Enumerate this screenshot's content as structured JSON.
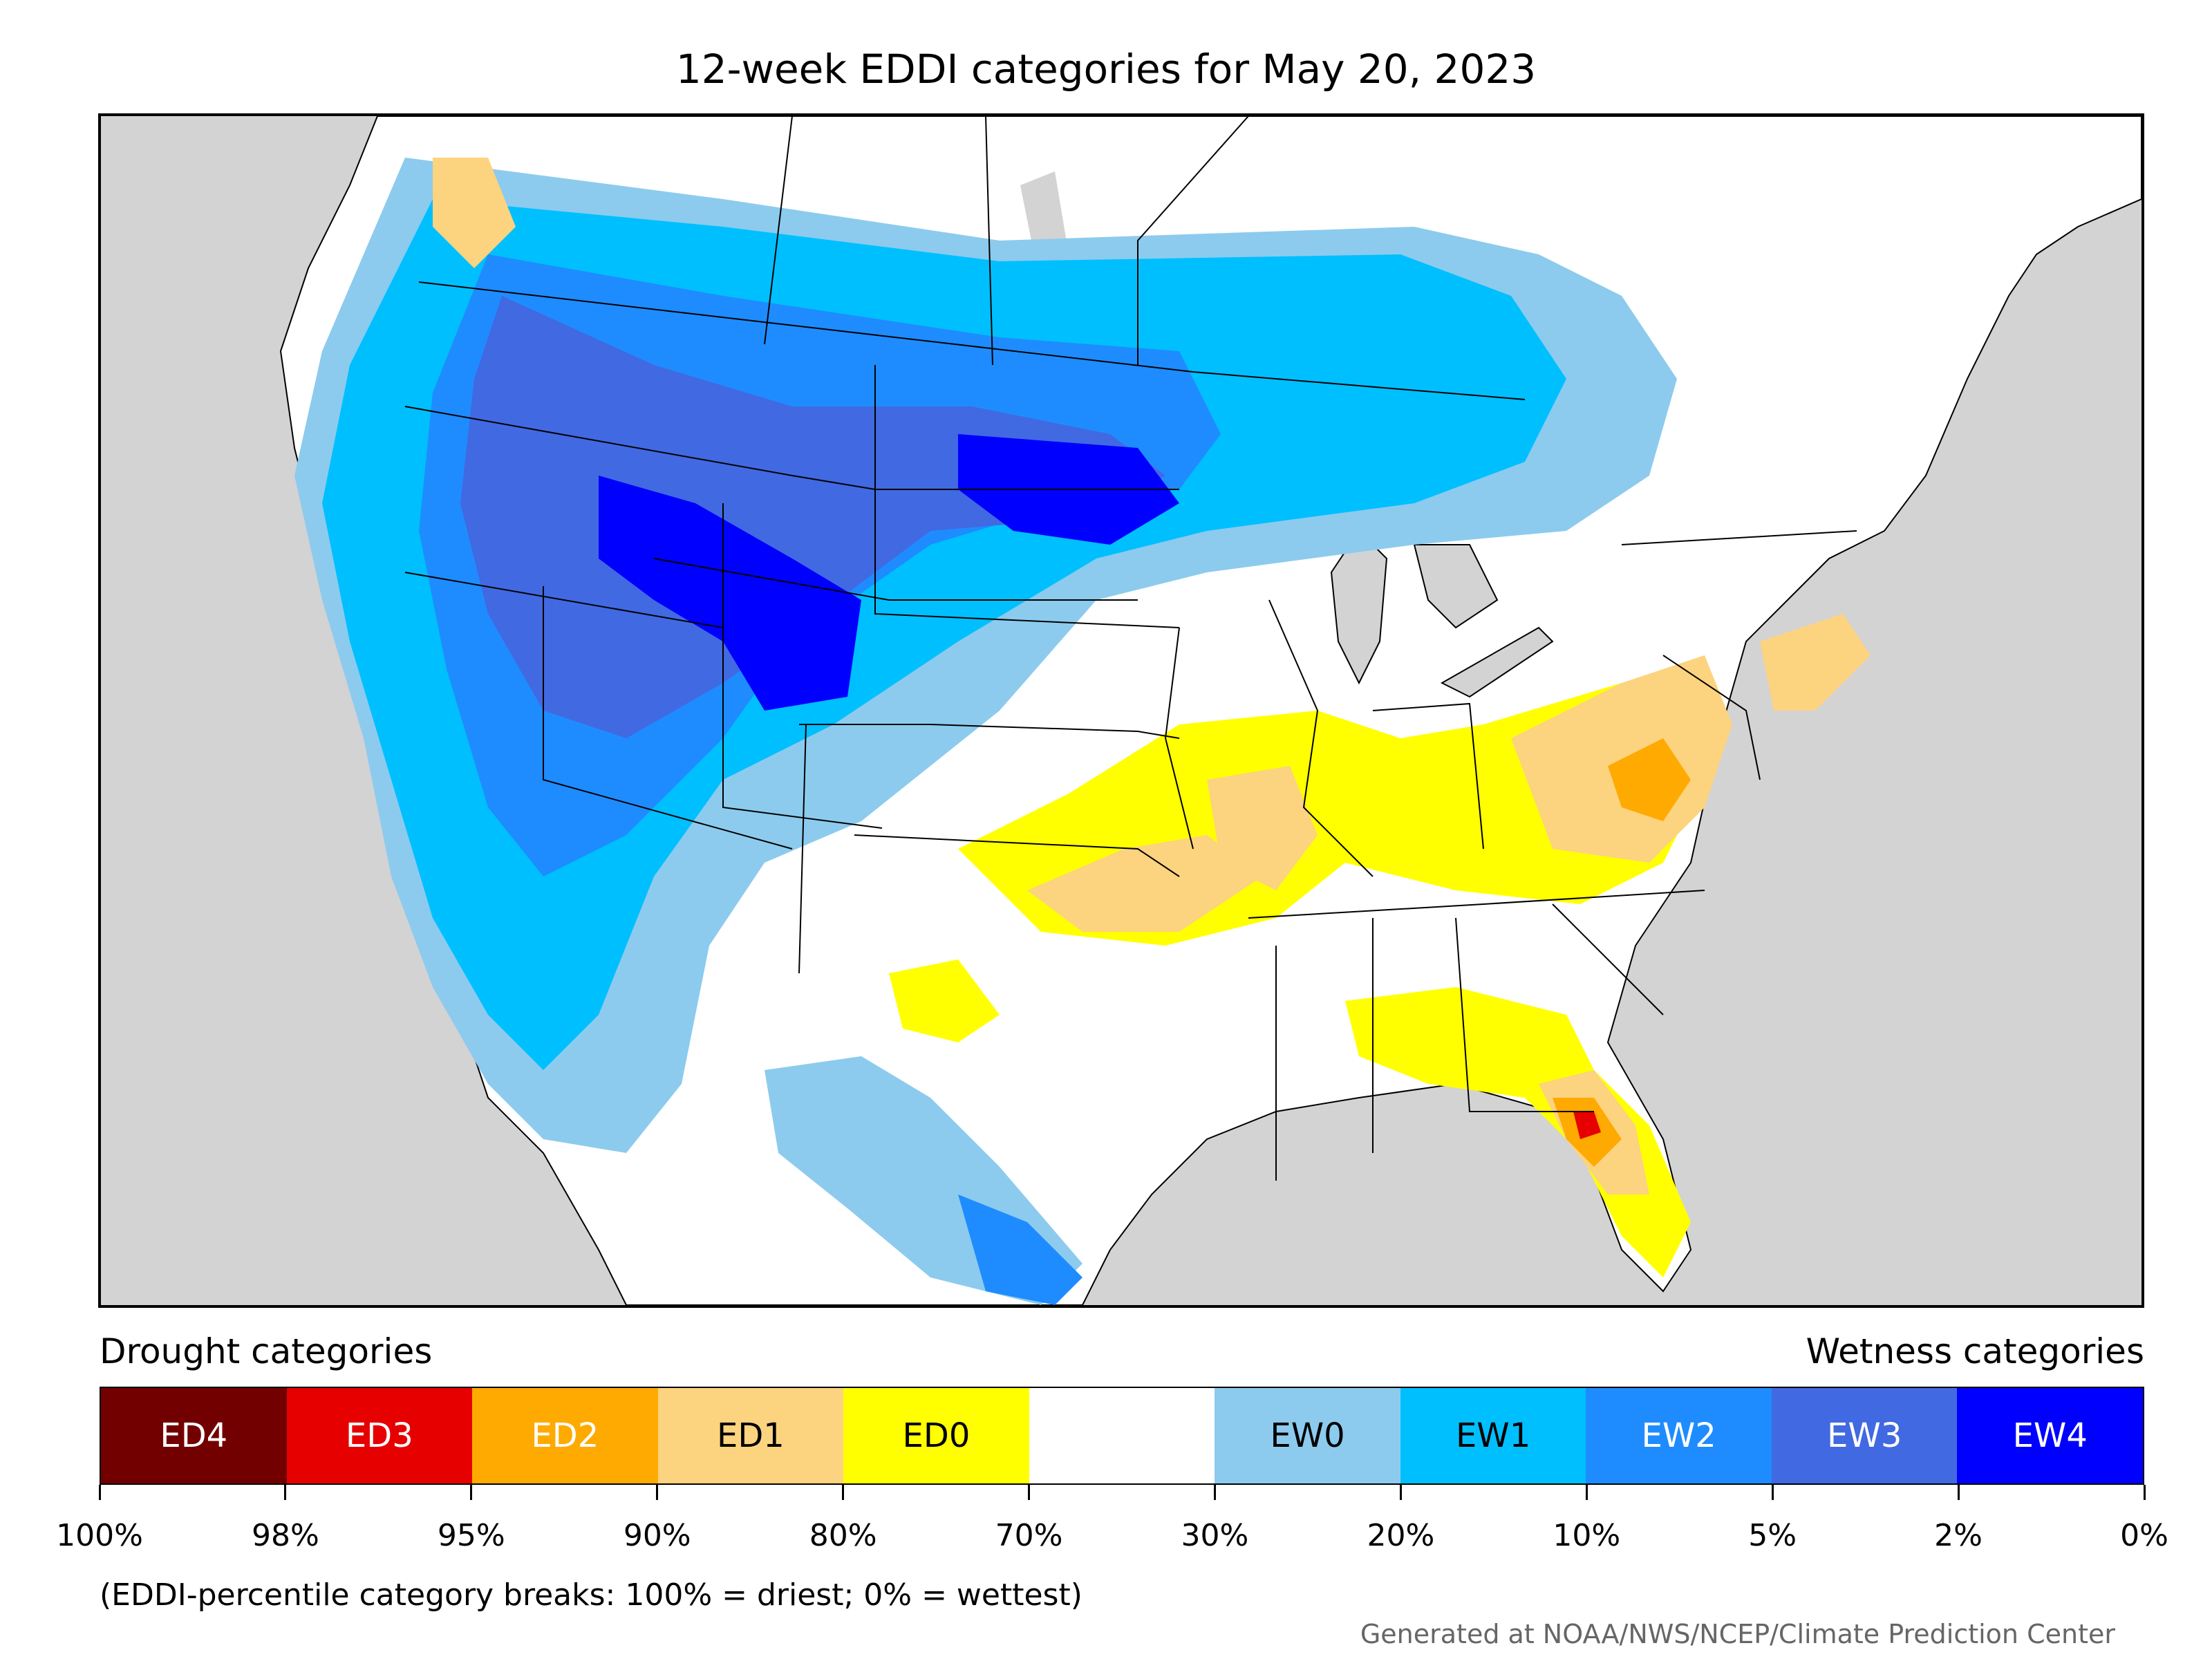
{
  "title": "12-week EDDI categories for May 20, 2023",
  "legend": {
    "drought_header": "Drought categories",
    "wetness_header": "Wetness categories",
    "categories": [
      {
        "label": "ED4",
        "color": "#730000",
        "text_color": "#ffffff"
      },
      {
        "label": "ED3",
        "color": "#e60000",
        "text_color": "#ffffff"
      },
      {
        "label": "ED2",
        "color": "#ffaa00",
        "text_color": "#ffffff"
      },
      {
        "label": "ED1",
        "color": "#fcd37f",
        "text_color": "#000000"
      },
      {
        "label": "ED0",
        "color": "#ffff00",
        "text_color": "#000000"
      },
      {
        "label": "",
        "color": "#ffffff",
        "text_color": "#000000"
      },
      {
        "label": "EW0",
        "color": "#8ccbee",
        "text_color": "#000000"
      },
      {
        "label": "EW1",
        "color": "#00bfff",
        "text_color": "#000000"
      },
      {
        "label": "EW2",
        "color": "#1e8cff",
        "text_color": "#ffffff"
      },
      {
        "label": "EW3",
        "color": "#4169e1",
        "text_color": "#ffffff"
      },
      {
        "label": "EW4",
        "color": "#0000ff",
        "text_color": "#ffffff"
      }
    ],
    "breaks": [
      "100%",
      "98%",
      "95%",
      "90%",
      "80%",
      "70%",
      "30%",
      "20%",
      "10%",
      "5%",
      "2%",
      "0%"
    ],
    "note": "(EDDI-percentile category breaks: 100% = driest; 0% = wettest)"
  },
  "credit": "Generated at NOAA/NWS/NCEP/Climate Prediction Center",
  "map": {
    "ocean_color": "#d3d3d3",
    "land_color": "#ffffff",
    "boundary_color": "#000000"
  }
}
